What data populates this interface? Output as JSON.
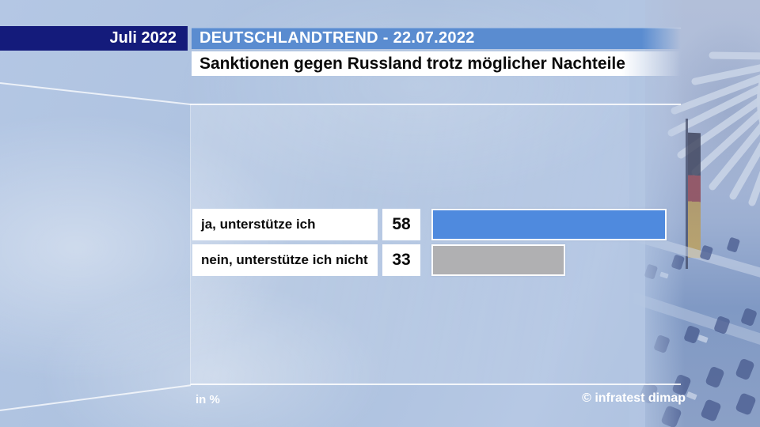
{
  "banner": {
    "month": "Juli 2022",
    "title": "DEUTSCHLANDTREND - 22.07.2022"
  },
  "chart_data": {
    "type": "bar",
    "orientation": "horizontal",
    "title": "Sanktionen gegen Russland trotz möglicher Nachteile",
    "categories": [
      "ja, unterstütze ich",
      "nein, unterstütze ich nicht"
    ],
    "values": [
      58,
      33
    ],
    "unit_label": "in %",
    "source": "© infratest dimap",
    "xlim": [
      0,
      61
    ],
    "bar_colors": [
      "#4f8ade",
      "#b0b0b2"
    ],
    "grid": false,
    "legend": "none"
  },
  "colors": {
    "navy_banner": "#141b7b",
    "header_blue": "#5a8cd0",
    "bar_blue": "#4f8ade",
    "bar_gray": "#b0b0b2"
  },
  "background": {
    "scene": "Bundestag plenary hall, blue tint",
    "emblem": "bundesadler-eagle",
    "flag": "german-flag"
  }
}
